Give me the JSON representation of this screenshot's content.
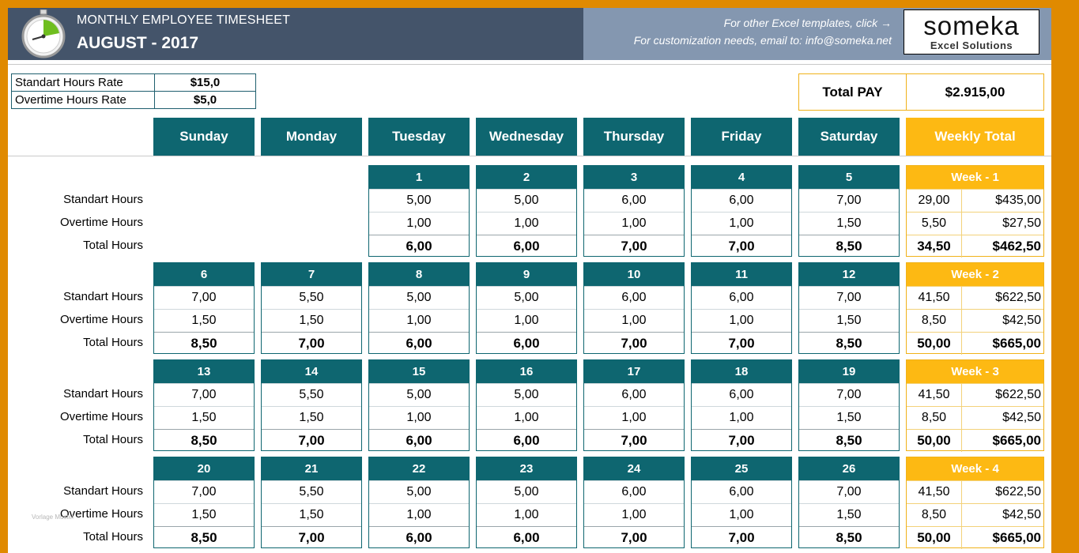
{
  "header": {
    "subtitle": "MONTHLY EMPLOYEE TIMESHEET",
    "month": "AUGUST - 2017",
    "templates_link": "For other Excel templates, click →",
    "customization_note": "For customization needs, email to: info@someka.net",
    "logo_name": "someka",
    "logo_sub": "Excel Solutions"
  },
  "rates": [
    {
      "label": "Standart Hours Rate",
      "value": "$15,0"
    },
    {
      "label": "Overtime Hours Rate",
      "value": "$5,0"
    }
  ],
  "total_pay": {
    "label": "Total PAY",
    "value": "$2.915,00"
  },
  "days": [
    "Sunday",
    "Monday",
    "Tuesday",
    "Wednesday",
    "Thursday",
    "Friday",
    "Saturday"
  ],
  "weekly_total_label": "Weekly Total",
  "row_labels": [
    "Standart Hours",
    "Overtime Hours",
    "Total Hours"
  ],
  "watermark": "Vorlage Muster",
  "weeks": [
    {
      "label": "Week - 1",
      "days": [
        null,
        null,
        {
          "date": "1",
          "std": "5,00",
          "ot": "1,00",
          "total": "6,00"
        },
        {
          "date": "2",
          "std": "5,00",
          "ot": "1,00",
          "total": "6,00"
        },
        {
          "date": "3",
          "std": "6,00",
          "ot": "1,00",
          "total": "7,00"
        },
        {
          "date": "4",
          "std": "6,00",
          "ot": "1,00",
          "total": "7,00"
        },
        {
          "date": "5",
          "std": "7,00",
          "ot": "1,50",
          "total": "8,50"
        }
      ],
      "totals": {
        "std_hours": "29,00",
        "std_pay": "$435,00",
        "ot_hours": "5,50",
        "ot_pay": "$27,50",
        "total_hours": "34,50",
        "total_pay": "$462,50"
      }
    },
    {
      "label": "Week - 2",
      "days": [
        {
          "date": "6",
          "std": "7,00",
          "ot": "1,50",
          "total": "8,50"
        },
        {
          "date": "7",
          "std": "5,50",
          "ot": "1,50",
          "total": "7,00"
        },
        {
          "date": "8",
          "std": "5,00",
          "ot": "1,00",
          "total": "6,00"
        },
        {
          "date": "9",
          "std": "5,00",
          "ot": "1,00",
          "total": "6,00"
        },
        {
          "date": "10",
          "std": "6,00",
          "ot": "1,00",
          "total": "7,00"
        },
        {
          "date": "11",
          "std": "6,00",
          "ot": "1,00",
          "total": "7,00"
        },
        {
          "date": "12",
          "std": "7,00",
          "ot": "1,50",
          "total": "8,50"
        }
      ],
      "totals": {
        "std_hours": "41,50",
        "std_pay": "$622,50",
        "ot_hours": "8,50",
        "ot_pay": "$42,50",
        "total_hours": "50,00",
        "total_pay": "$665,00"
      }
    },
    {
      "label": "Week - 3",
      "days": [
        {
          "date": "13",
          "std": "7,00",
          "ot": "1,50",
          "total": "8,50"
        },
        {
          "date": "14",
          "std": "5,50",
          "ot": "1,50",
          "total": "7,00"
        },
        {
          "date": "15",
          "std": "5,00",
          "ot": "1,00",
          "total": "6,00"
        },
        {
          "date": "16",
          "std": "5,00",
          "ot": "1,00",
          "total": "6,00"
        },
        {
          "date": "17",
          "std": "6,00",
          "ot": "1,00",
          "total": "7,00"
        },
        {
          "date": "18",
          "std": "6,00",
          "ot": "1,00",
          "total": "7,00"
        },
        {
          "date": "19",
          "std": "7,00",
          "ot": "1,50",
          "total": "8,50"
        }
      ],
      "totals": {
        "std_hours": "41,50",
        "std_pay": "$622,50",
        "ot_hours": "8,50",
        "ot_pay": "$42,50",
        "total_hours": "50,00",
        "total_pay": "$665,00"
      }
    },
    {
      "label": "Week - 4",
      "days": [
        {
          "date": "20",
          "std": "7,00",
          "ot": "1,50",
          "total": "8,50"
        },
        {
          "date": "21",
          "std": "5,50",
          "ot": "1,50",
          "total": "7,00"
        },
        {
          "date": "22",
          "std": "5,00",
          "ot": "1,00",
          "total": "6,00"
        },
        {
          "date": "23",
          "std": "5,00",
          "ot": "1,00",
          "total": "6,00"
        },
        {
          "date": "24",
          "std": "6,00",
          "ot": "1,00",
          "total": "7,00"
        },
        {
          "date": "25",
          "std": "6,00",
          "ot": "1,00",
          "total": "7,00"
        },
        {
          "date": "26",
          "std": "7,00",
          "ot": "1,50",
          "total": "8,50"
        }
      ],
      "totals": {
        "std_hours": "41,50",
        "std_pay": "$622,50",
        "ot_hours": "8,50",
        "ot_pay": "$42,50",
        "total_hours": "50,00",
        "total_pay": "$665,00"
      }
    }
  ]
}
